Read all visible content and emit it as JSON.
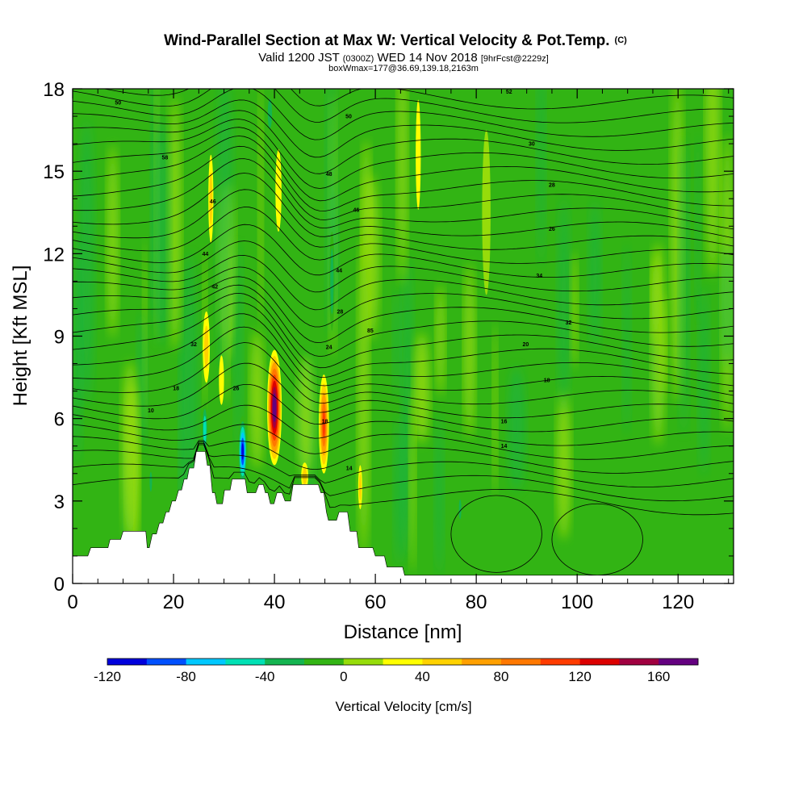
{
  "chart_data": {
    "type": "heatmap",
    "title": "Wind-Parallel Section at Max W: Vertical Velocity & Pot.Temp.",
    "title_mark": "(C)",
    "subtitle_parts": [
      "Valid 1200 JST",
      "(0300Z)",
      "WED 14 Nov 2018",
      "[9hrFcst@2229z]"
    ],
    "subtitle2": "boxWmax=177@36.69,139.18,2163m",
    "xlabel": "Distance [nm]",
    "ylabel": "Height [Kft MSL]",
    "xlim": [
      0,
      131
    ],
    "ylim": [
      0,
      18
    ],
    "x_ticks": [
      0,
      20,
      40,
      60,
      80,
      100,
      120
    ],
    "y_ticks": [
      0,
      3,
      6,
      9,
      12,
      15,
      18
    ],
    "colorbar": {
      "label": "Vertical Velocity [cm/s]",
      "min": -120,
      "max": 180,
      "step": 20,
      "tick_labels": [
        -120,
        -80,
        -40,
        0,
        40,
        80,
        120,
        160
      ],
      "colors": [
        "#0000dc",
        "#0050ff",
        "#00c8ff",
        "#00e0b4",
        "#14b450",
        "#32b414",
        "#96dc0a",
        "#ffff00",
        "#ffd200",
        "#ffa000",
        "#ff7800",
        "#ff3c00",
        "#dc0000",
        "#a00040",
        "#640080"
      ]
    },
    "terrain": [
      [
        0,
        1
      ],
      [
        1.2,
        1
      ],
      [
        3,
        1
      ],
      [
        3.6,
        1.3
      ],
      [
        7,
        1.3
      ],
      [
        7.4,
        1.6
      ],
      [
        9.5,
        1.6
      ],
      [
        10,
        1.9
      ],
      [
        14.5,
        1.9
      ],
      [
        14.8,
        1.3
      ],
      [
        15.2,
        1.3
      ],
      [
        15.8,
        1.8
      ],
      [
        16.6,
        1.8
      ],
      [
        17.2,
        2.2
      ],
      [
        17.9,
        2.2
      ],
      [
        18.5,
        2.6
      ],
      [
        19.1,
        2.6
      ],
      [
        19.7,
        3
      ],
      [
        20.4,
        3
      ],
      [
        21,
        3.4
      ],
      [
        21.6,
        3.4
      ],
      [
        22.1,
        3.8
      ],
      [
        22.7,
        3.8
      ],
      [
        23.1,
        4.2
      ],
      [
        24,
        4.2
      ],
      [
        24.5,
        4.8
      ],
      [
        26.3,
        4.8
      ],
      [
        26.7,
        4.3
      ],
      [
        27.2,
        4.3
      ],
      [
        27.7,
        3.3
      ],
      [
        28.2,
        3.3
      ],
      [
        28.6,
        2.9
      ],
      [
        29.7,
        2.9
      ],
      [
        30.1,
        3.4
      ],
      [
        31.2,
        3.4
      ],
      [
        31.6,
        3.8
      ],
      [
        34.2,
        3.8
      ],
      [
        34.6,
        3.3
      ],
      [
        36.3,
        3.3
      ],
      [
        36.9,
        3.6
      ],
      [
        37.8,
        3.6
      ],
      [
        38.2,
        3.3
      ],
      [
        38.7,
        3.3
      ],
      [
        39.2,
        2.9
      ],
      [
        39.9,
        2.9
      ],
      [
        40.5,
        3.3
      ],
      [
        41.5,
        3.3
      ],
      [
        42.1,
        3
      ],
      [
        43.2,
        3
      ],
      [
        43.7,
        3.6
      ],
      [
        48.7,
        3.6
      ],
      [
        49.2,
        3.3
      ],
      [
        49.8,
        3.3
      ],
      [
        50.3,
        2.6
      ],
      [
        50.7,
        2.3
      ],
      [
        52.3,
        2.3
      ],
      [
        52.8,
        2.6
      ],
      [
        54.5,
        2.6
      ],
      [
        55,
        1.9
      ],
      [
        56.3,
        1.9
      ],
      [
        56.7,
        1.3
      ],
      [
        59.5,
        1.3
      ],
      [
        60,
        1
      ],
      [
        61.8,
        1
      ],
      [
        62.3,
        0.6
      ],
      [
        65.4,
        0.6
      ],
      [
        65.8,
        0.3
      ],
      [
        131,
        0.3
      ],
      [
        131,
        0
      ],
      [
        0,
        0
      ]
    ],
    "updrafts": [
      {
        "x": 40.0,
        "y": 6.4,
        "rx": 1.45,
        "ry": 2.1,
        "value": 177
      },
      {
        "x": 49.8,
        "y": 5.8,
        "rx": 1.0,
        "ry": 1.8,
        "value": 100
      },
      {
        "x": 26.5,
        "y": 8.6,
        "rx": 0.7,
        "ry": 1.3,
        "value": 40
      },
      {
        "x": 27.4,
        "y": 14.0,
        "rx": 0.5,
        "ry": 1.6,
        "value": 40
      },
      {
        "x": 29.5,
        "y": 7.4,
        "rx": 0.5,
        "ry": 0.9,
        "value": 30
      },
      {
        "x": 46.0,
        "y": 3.9,
        "rx": 0.7,
        "ry": 0.5,
        "value": 40
      },
      {
        "x": 57.0,
        "y": 3.5,
        "rx": 0.4,
        "ry": 0.8,
        "value": 40
      },
      {
        "x": 40.8,
        "y": 14.3,
        "rx": 0.6,
        "ry": 1.5,
        "value": 30
      },
      {
        "x": 68.5,
        "y": 15.6,
        "rx": 0.5,
        "ry": 2.0,
        "value": 20
      },
      {
        "x": 82.0,
        "y": 13.5,
        "rx": 0.7,
        "ry": 2.5,
        "value": 15
      }
    ],
    "downdrafts": [
      {
        "x": 33.7,
        "y": 4.8,
        "rx": 0.9,
        "ry": 1.3,
        "value": -120
      },
      {
        "x": 26.2,
        "y": 5.6,
        "rx": 0.6,
        "ry": 1.0,
        "value": -70
      },
      {
        "x": 51.4,
        "y": 11.0,
        "rx": 0.5,
        "ry": 1.8,
        "value": -50
      },
      {
        "x": 39.1,
        "y": 17.1,
        "rx": 0.7,
        "ry": 0.9,
        "value": -40
      },
      {
        "x": 15.5,
        "y": 3.7,
        "rx": 0.4,
        "ry": 0.6,
        "value": -40
      },
      {
        "x": 76.8,
        "y": 2.7,
        "rx": 0.4,
        "ry": 0.6,
        "value": -40
      }
    ],
    "isentrope_labels": [
      {
        "x": 9,
        "y": 17.5,
        "text": "50"
      },
      {
        "x": 18.3,
        "y": 15.5,
        "text": "58"
      },
      {
        "x": 27.8,
        "y": 13.9,
        "text": "46"
      },
      {
        "x": 26.3,
        "y": 12.0,
        "text": "44"
      },
      {
        "x": 28.2,
        "y": 10.8,
        "text": "42"
      },
      {
        "x": 24.0,
        "y": 8.7,
        "text": "32"
      },
      {
        "x": 20.5,
        "y": 7.1,
        "text": "18"
      },
      {
        "x": 15.5,
        "y": 6.3,
        "text": "10"
      },
      {
        "x": 32.4,
        "y": 7.1,
        "text": "26"
      },
      {
        "x": 54.7,
        "y": 17.0,
        "text": "50"
      },
      {
        "x": 50.8,
        "y": 14.9,
        "text": "48"
      },
      {
        "x": 56.2,
        "y": 13.6,
        "text": "46"
      },
      {
        "x": 52.8,
        "y": 11.4,
        "text": "44"
      },
      {
        "x": 53.0,
        "y": 9.9,
        "text": "28"
      },
      {
        "x": 59.0,
        "y": 9.2,
        "text": "85"
      },
      {
        "x": 50.8,
        "y": 8.6,
        "text": "24"
      },
      {
        "x": 50.0,
        "y": 5.9,
        "text": "18"
      },
      {
        "x": 54.8,
        "y": 4.2,
        "text": "14"
      },
      {
        "x": 86.5,
        "y": 17.9,
        "text": "52"
      },
      {
        "x": 91.0,
        "y": 16.0,
        "text": "30"
      },
      {
        "x": 95.0,
        "y": 14.5,
        "text": "28"
      },
      {
        "x": 95.0,
        "y": 12.9,
        "text": "26"
      },
      {
        "x": 92.5,
        "y": 11.2,
        "text": "34"
      },
      {
        "x": 98.3,
        "y": 9.5,
        "text": "32"
      },
      {
        "x": 89.8,
        "y": 8.7,
        "text": "20"
      },
      {
        "x": 94.0,
        "y": 7.4,
        "text": "18"
      },
      {
        "x": 85.5,
        "y": 5.9,
        "text": "16"
      },
      {
        "x": 85.5,
        "y": 5.0,
        "text": "14"
      }
    ]
  }
}
